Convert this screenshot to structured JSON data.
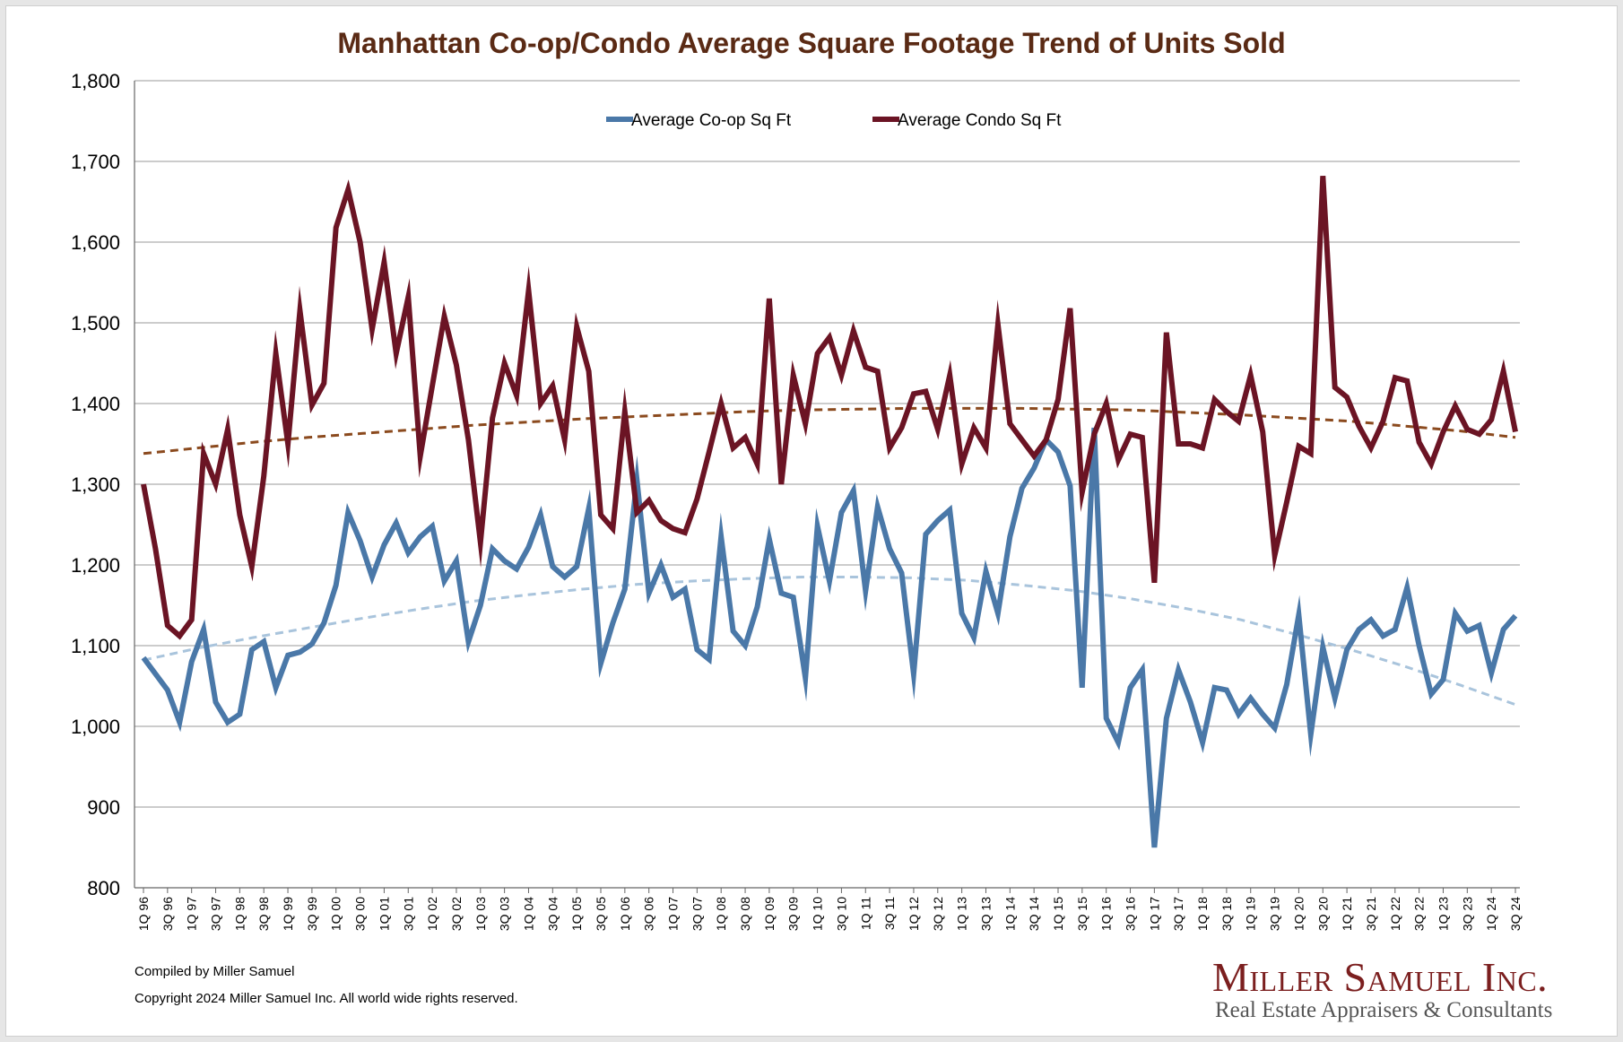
{
  "chart_data": {
    "type": "line",
    "title": "Manhattan Co-op/Condo Average Square Footage Trend of Units Sold",
    "xlabel": "",
    "ylabel": "",
    "ylim": [
      800,
      1800
    ],
    "yticks": [
      "800",
      "900",
      "1,000",
      "1,100",
      "1,200",
      "1,300",
      "1,400",
      "1,500",
      "1,600",
      "1,700",
      "1,800"
    ],
    "grid": "horizontal",
    "legend_position": "top-center",
    "x_tick_labels": [
      "1Q 96",
      "3Q 96",
      "1Q 97",
      "3Q 97",
      "1Q 98",
      "3Q 98",
      "1Q 99",
      "3Q 99",
      "1Q 00",
      "3Q 00",
      "1Q 01",
      "3Q 01",
      "1Q 02",
      "3Q 02",
      "1Q 03",
      "3Q 03",
      "1Q 04",
      "3Q 04",
      "1Q 05",
      "3Q 05",
      "1Q 06",
      "3Q 06",
      "1Q 07",
      "3Q 07",
      "1Q 08",
      "3Q 08",
      "1Q 09",
      "3Q 09",
      "1Q 10",
      "3Q 10",
      "1Q 11",
      "3Q 11",
      "1Q 12",
      "3Q 12",
      "1Q 13",
      "3Q 13",
      "1Q 14",
      "3Q 14",
      "1Q 15",
      "3Q 15",
      "1Q 16",
      "3Q 16",
      "1Q 17",
      "3Q 17",
      "1Q 18",
      "3Q 18",
      "1Q 19",
      "3Q 19",
      "1Q 20",
      "3Q 20",
      "1Q 21",
      "3Q 21",
      "1Q 22",
      "3Q 22",
      "1Q 23",
      "3Q 23",
      "1Q 24",
      "3Q 24"
    ],
    "x_start": "1Q 96",
    "x_end": "3Q 24",
    "series": [
      {
        "name": "Average Co-op Sq Ft",
        "color": "#4a78a8",
        "values": [
          1085,
          1065,
          1045,
          1005,
          1080,
          1120,
          1030,
          1005,
          1015,
          1095,
          1105,
          1048,
          1088,
          1092,
          1102,
          1128,
          1175,
          1265,
          1230,
          1185,
          1225,
          1252,
          1215,
          1235,
          1248,
          1180,
          1205,
          1105,
          1150,
          1220,
          1205,
          1195,
          1222,
          1262,
          1198,
          1185,
          1198,
          1270,
          1078,
          1128,
          1170,
          1305,
          1165,
          1200,
          1160,
          1170,
          1095,
          1083,
          1235,
          1118,
          1100,
          1148,
          1232,
          1165,
          1160,
          1060,
          1248,
          1180,
          1265,
          1292,
          1168,
          1272,
          1220,
          1190,
          1065,
          1238,
          1255,
          1268,
          1140,
          1110,
          1192,
          1140,
          1235,
          1295,
          1320,
          1355,
          1340,
          1298,
          1048,
          1370,
          1010,
          980,
          1048,
          1070,
          850,
          1010,
          1070,
          1030,
          980,
          1048,
          1045,
          1015,
          1035,
          1015,
          998,
          1052,
          1138,
          990,
          1098,
          1035,
          1095,
          1120,
          1132,
          1112,
          1120,
          1172,
          1100,
          1040,
          1058,
          1140,
          1118,
          1125,
          1066,
          1120,
          1137
        ],
        "trend": [
          1082,
          1097,
          1110,
          1122,
          1134,
          1145,
          1155,
          1163,
          1170,
          1176,
          1180,
          1183,
          1185,
          1185,
          1184,
          1181,
          1175,
          1168,
          1158,
          1146,
          1132,
          1114,
          1095,
          1074,
          1051,
          1027
        ]
      },
      {
        "name": "Average Condo Sq Ft",
        "color": "#6b1424",
        "values": [
          1300,
          1220,
          1125,
          1112,
          1132,
          1338,
          1300,
          1368,
          1262,
          1198,
          1310,
          1462,
          1350,
          1515,
          1398,
          1425,
          1618,
          1665,
          1600,
          1492,
          1575,
          1462,
          1532,
          1335,
          1422,
          1508,
          1448,
          1355,
          1228,
          1382,
          1450,
          1410,
          1540,
          1400,
          1422,
          1355,
          1495,
          1440,
          1262,
          1245,
          1390,
          1265,
          1280,
          1255,
          1245,
          1240,
          1282,
          1340,
          1400,
          1345,
          1358,
          1325,
          1530,
          1300,
          1435,
          1375,
          1462,
          1482,
          1435,
          1490,
          1445,
          1440,
          1345,
          1370,
          1412,
          1415,
          1368,
          1435,
          1325,
          1370,
          1345,
          1498,
          1375,
          1355,
          1335,
          1355,
          1405,
          1518,
          1290,
          1362,
          1400,
          1330,
          1362,
          1358,
          1178,
          1488,
          1350,
          1350,
          1345,
          1405,
          1390,
          1378,
          1435,
          1365,
          1212,
          1278,
          1347,
          1338,
          1682,
          1420,
          1408,
          1372,
          1345,
          1378,
          1432,
          1428,
          1352,
          1325,
          1365,
          1397,
          1368,
          1362,
          1380,
          1440,
          1365
        ],
        "trend": [
          1338,
          1345,
          1352,
          1358,
          1363,
          1368,
          1373,
          1377,
          1381,
          1384,
          1387,
          1390,
          1392,
          1393,
          1394,
          1394,
          1394,
          1393,
          1392,
          1389,
          1386,
          1382,
          1378,
          1372,
          1366,
          1358
        ]
      }
    ]
  },
  "footer": {
    "compiled_by": "Compiled by Miller Samuel",
    "copyright": "Copyright 2024 Miller Samuel Inc.  All world wide rights reserved."
  },
  "logo": {
    "name": "Miller Samuel Inc.",
    "tagline": "Real Estate Appraisers & Consultants"
  }
}
